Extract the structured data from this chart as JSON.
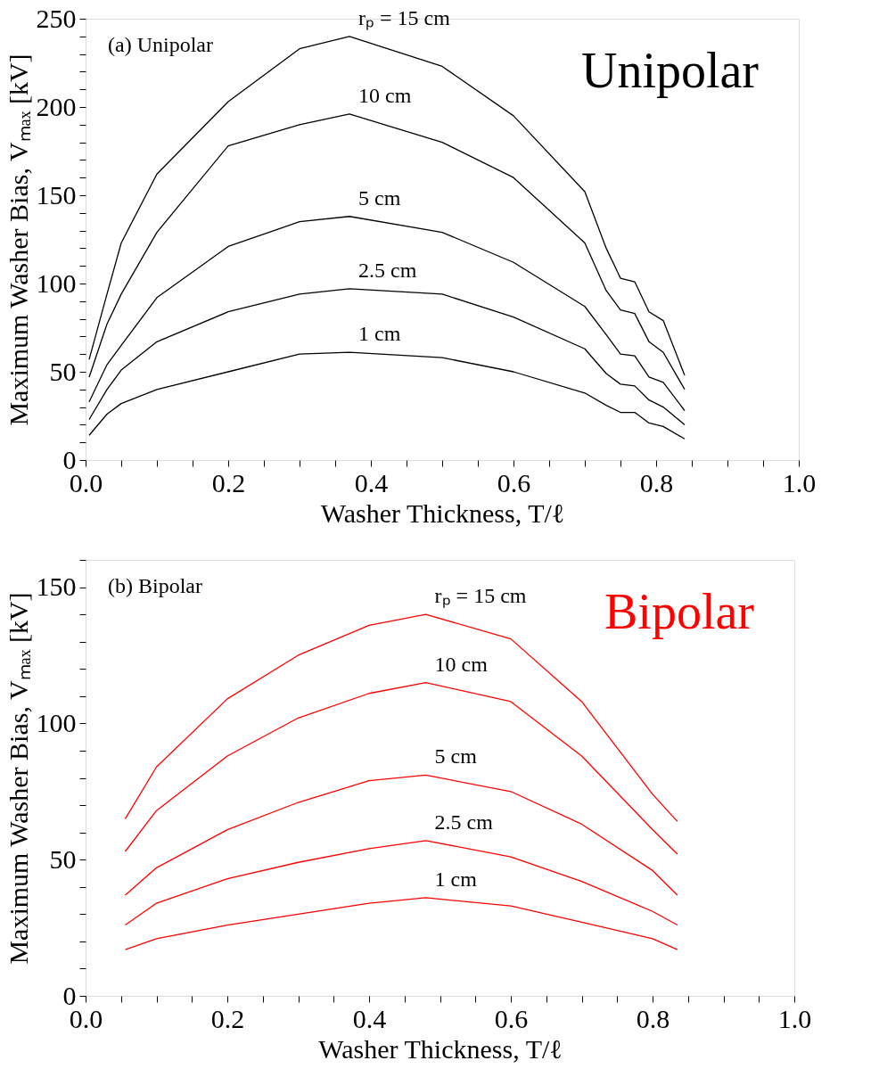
{
  "chart_data": [
    {
      "type": "line",
      "xlabel": "Washer Thickness, T/ℓ",
      "ylabel": "Maximum Washer Bias, Vₘₐₓ [kV]",
      "line_style": "solid",
      "marker": "none",
      "legend": false,
      "grid": false,
      "xlim": [
        0,
        1
      ],
      "ylim": [
        0,
        250
      ],
      "xticks": [
        {
          "value": 0,
          "label": "0.0"
        },
        {
          "value": 0.05,
          "label": null
        },
        {
          "value": 0.1,
          "label": null
        },
        {
          "value": 0.15,
          "label": null
        },
        {
          "value": 0.2,
          "label": "0.2"
        },
        {
          "value": 0.25,
          "label": null
        },
        {
          "value": 0.3,
          "label": null
        },
        {
          "value": 0.35,
          "label": null
        },
        {
          "value": 0.4,
          "label": "0.4"
        },
        {
          "value": 0.45,
          "label": null
        },
        {
          "value": 0.5,
          "label": null
        },
        {
          "value": 0.55,
          "label": null
        },
        {
          "value": 0.6,
          "label": "0.6"
        },
        {
          "value": 0.65,
          "label": null
        },
        {
          "value": 0.7,
          "label": null
        },
        {
          "value": 0.75,
          "label": null
        },
        {
          "value": 0.8,
          "label": "0.8"
        },
        {
          "value": 0.85,
          "label": null
        },
        {
          "value": 0.9,
          "label": null
        },
        {
          "value": 0.95,
          "label": null
        },
        {
          "value": 1,
          "label": "1.0"
        }
      ],
      "yticks": [
        0,
        {
          "value": 10,
          "label": null
        },
        {
          "value": 20,
          "label": null
        },
        {
          "value": 30,
          "label": null
        },
        {
          "value": 40,
          "label": null
        },
        50,
        {
          "value": 60,
          "label": null
        },
        {
          "value": 70,
          "label": null
        },
        {
          "value": 80,
          "label": null
        },
        {
          "value": 90,
          "label": null
        },
        100,
        {
          "value": 110,
          "label": null
        },
        {
          "value": 120,
          "label": null
        },
        {
          "value": 130,
          "label": null
        },
        {
          "value": 140,
          "label": null
        },
        150,
        {
          "value": 160,
          "label": null
        },
        {
          "value": 170,
          "label": null
        },
        {
          "value": 180,
          "label": null
        },
        {
          "value": 190,
          "label": null
        },
        200,
        {
          "value": 210,
          "label": null
        },
        {
          "value": 220,
          "label": null
        },
        {
          "value": 230,
          "label": null
        },
        {
          "value": 240,
          "label": null
        },
        250
      ],
      "x": [
        0.005,
        0.03,
        0.05,
        0.1,
        0.2,
        0.3,
        0.37,
        0.5,
        0.6,
        0.7,
        0.73,
        0.75,
        0.77,
        0.79,
        0.81,
        0.84
      ],
      "series": [
        {
          "name": "rₚ = 15 cm",
          "color": "#000000",
          "values": [
            57,
            94,
            123,
            162,
            203,
            233,
            240,
            223,
            195,
            152,
            120,
            103,
            101,
            84,
            79,
            48
          ]
        },
        {
          "name": "10 cm",
          "color": "#000000",
          "values": [
            47,
            77,
            94,
            129,
            178,
            190,
            196,
            180,
            160,
            123,
            96,
            85,
            83,
            67,
            61,
            40
          ]
        },
        {
          "name": "5 cm",
          "color": "#000000",
          "values": [
            33,
            54,
            65,
            92,
            121,
            135,
            138,
            129,
            112,
            87,
            71,
            60,
            59,
            47,
            44,
            28
          ]
        },
        {
          "name": "2.5 cm",
          "color": "#000000",
          "values": [
            23,
            40,
            51,
            67,
            84,
            94,
            97,
            94,
            81,
            63,
            49,
            43,
            42,
            34,
            30,
            20
          ]
        },
        {
          "name": "1 cm",
          "color": "#000000",
          "values": [
            14,
            26,
            32,
            40,
            50,
            60,
            61,
            58,
            50,
            38,
            31,
            27,
            27,
            21,
            19,
            12
          ]
        }
      ],
      "annotations": [
        "(a) Unipolar",
        "Unipolar"
      ]
    },
    {
      "type": "line",
      "xlabel": "Washer Thickness, T/ℓ",
      "ylabel": "Maximum Washer Bias, Vₘₐₓ [kV]",
      "line_style": "solid",
      "marker": "none",
      "legend": false,
      "grid": false,
      "xlim": [
        0,
        1
      ],
      "ylim": [
        0,
        160
      ],
      "xticks": [
        {
          "value": 0,
          "label": "0.0"
        },
        {
          "value": 0.05,
          "label": null
        },
        {
          "value": 0.1,
          "label": null
        },
        {
          "value": 0.15,
          "label": null
        },
        {
          "value": 0.2,
          "label": "0.2"
        },
        {
          "value": 0.25,
          "label": null
        },
        {
          "value": 0.3,
          "label": null
        },
        {
          "value": 0.35,
          "label": null
        },
        {
          "value": 0.4,
          "label": "0.4"
        },
        {
          "value": 0.45,
          "label": null
        },
        {
          "value": 0.5,
          "label": null
        },
        {
          "value": 0.55,
          "label": null
        },
        {
          "value": 0.6,
          "label": "0.6"
        },
        {
          "value": 0.65,
          "label": null
        },
        {
          "value": 0.7,
          "label": null
        },
        {
          "value": 0.75,
          "label": null
        },
        {
          "value": 0.8,
          "label": "0.8"
        },
        {
          "value": 0.85,
          "label": null
        },
        {
          "value": 0.9,
          "label": null
        },
        {
          "value": 0.95,
          "label": null
        },
        {
          "value": 1,
          "label": "1.0"
        }
      ],
      "yticks": [
        0,
        {
          "value": 10,
          "label": null
        },
        {
          "value": 20,
          "label": null
        },
        {
          "value": 30,
          "label": null
        },
        {
          "value": 40,
          "label": null
        },
        50,
        {
          "value": 60,
          "label": null
        },
        {
          "value": 70,
          "label": null
        },
        {
          "value": 80,
          "label": null
        },
        {
          "value": 90,
          "label": null
        },
        100,
        {
          "value": 110,
          "label": null
        },
        {
          "value": 120,
          "label": null
        },
        {
          "value": 130,
          "label": null
        },
        {
          "value": 140,
          "label": null
        },
        150,
        {
          "value": 160,
          "label": null
        }
      ],
      "x": [
        0.056,
        0.1,
        0.2,
        0.3,
        0.4,
        0.48,
        0.6,
        0.7,
        0.8,
        0.835
      ],
      "series": [
        {
          "name": "rₚ = 15 cm",
          "color": "#ff0000",
          "values": [
            65,
            84,
            109,
            125,
            136,
            140,
            131,
            108,
            74,
            64
          ]
        },
        {
          "name": "10 cm",
          "color": "#ff0000",
          "values": [
            53,
            68,
            88,
            102,
            111,
            115,
            108,
            88,
            61,
            52
          ]
        },
        {
          "name": "5 cm",
          "color": "#ff0000",
          "values": [
            37,
            47,
            61,
            71,
            79,
            81,
            75,
            63,
            46,
            37
          ]
        },
        {
          "name": "2.5 cm",
          "color": "#ff0000",
          "values": [
            26,
            34,
            43,
            49,
            54,
            57,
            51,
            42,
            31,
            26
          ]
        },
        {
          "name": "1 cm",
          "color": "#ff0000",
          "values": [
            17,
            21,
            26,
            30,
            34,
            36,
            33,
            27,
            21,
            17
          ]
        }
      ],
      "annotations": [
        "(b) Bipolar",
        "Bipolar"
      ]
    }
  ]
}
